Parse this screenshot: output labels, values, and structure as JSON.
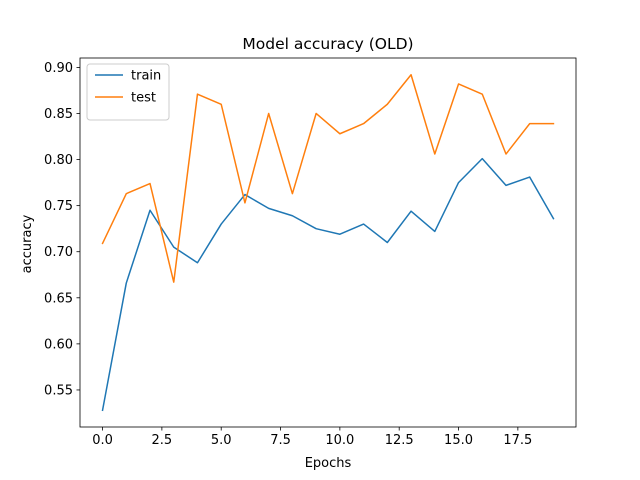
{
  "chart_data": {
    "type": "line",
    "title": "Model accuracy (OLD)",
    "xlabel": "Epochs",
    "ylabel": "accuracy",
    "x": [
      0,
      1,
      2,
      3,
      4,
      5,
      6,
      7,
      8,
      9,
      10,
      11,
      12,
      13,
      14,
      15,
      16,
      17,
      18,
      19
    ],
    "series": [
      {
        "name": "train",
        "color": "#1f77b4",
        "values": [
          0.528,
          0.666,
          0.745,
          0.705,
          0.688,
          0.73,
          0.762,
          0.747,
          0.739,
          0.725,
          0.719,
          0.73,
          0.71,
          0.744,
          0.722,
          0.775,
          0.801,
          0.772,
          0.781,
          0.736
        ]
      },
      {
        "name": "test",
        "color": "#ff7f0e",
        "values": [
          0.709,
          0.763,
          0.774,
          0.667,
          0.871,
          0.86,
          0.753,
          0.85,
          0.763,
          0.85,
          0.828,
          0.839,
          0.86,
          0.892,
          0.806,
          0.882,
          0.871,
          0.806,
          0.839,
          0.839
        ]
      }
    ],
    "xlim": [
      -0.95,
      19.95
    ],
    "ylim": [
      0.5098,
      0.9102
    ],
    "xticks": [
      0.0,
      2.5,
      5.0,
      7.5,
      10.0,
      12.5,
      15.0,
      17.5
    ],
    "xtick_labels": [
      "0.0",
      "2.5",
      "5.0",
      "7.5",
      "10.0",
      "12.5",
      "15.0",
      "17.5"
    ],
    "yticks": [
      0.55,
      0.6,
      0.65,
      0.7,
      0.75,
      0.8,
      0.85,
      0.9
    ],
    "ytick_labels": [
      "0.55",
      "0.60",
      "0.65",
      "0.70",
      "0.75",
      "0.80",
      "0.85",
      "0.90"
    ],
    "grid": false,
    "legend_position": "top-left"
  }
}
